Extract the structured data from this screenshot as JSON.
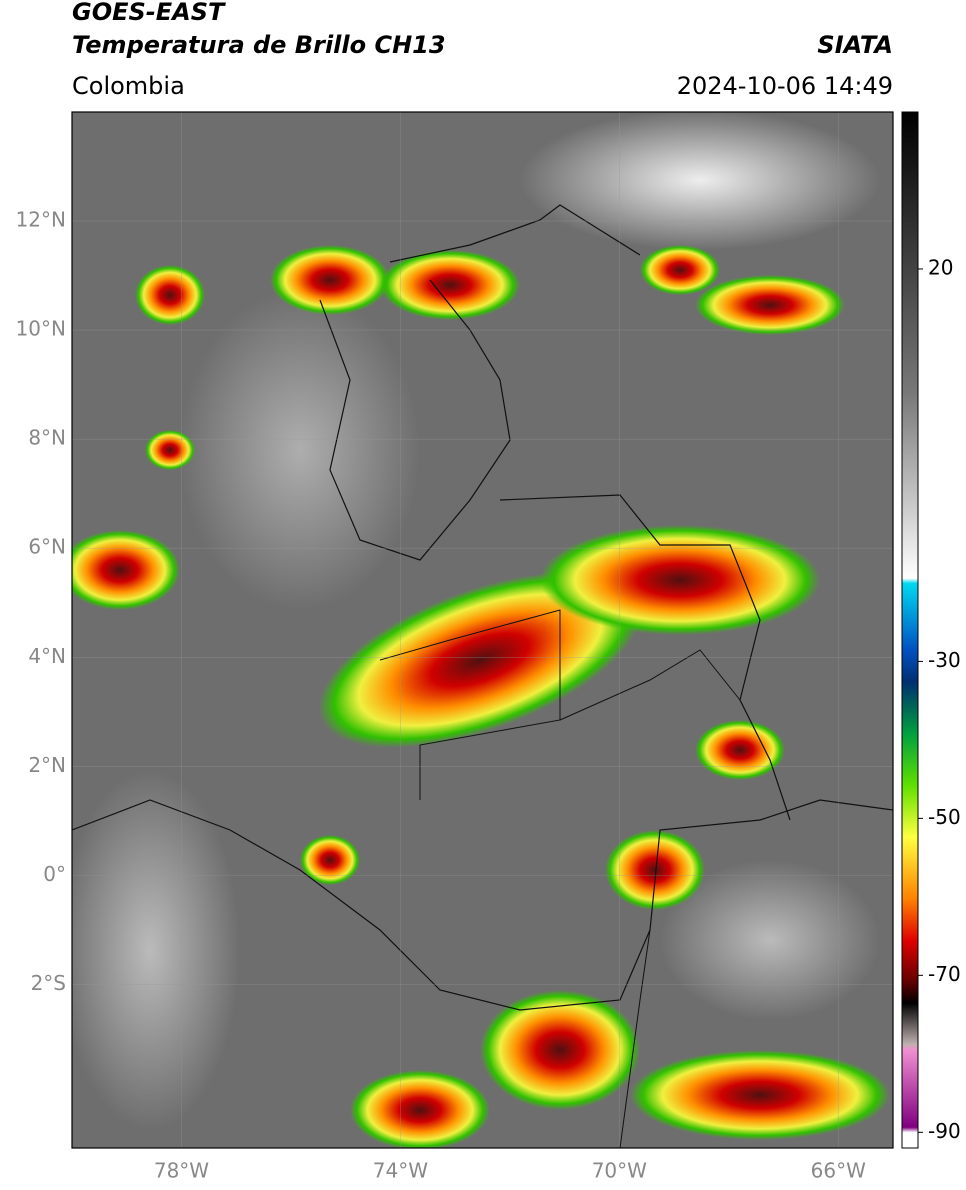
{
  "header": {
    "title": "GOES-EAST",
    "subtitle": "Temperatura de Brillo CH13",
    "region": "Colombia",
    "source": "SIATA",
    "datetime": "2024-10-06 14:49"
  },
  "map": {
    "lon_range": [
      -80,
      -65
    ],
    "lat_range": [
      -5,
      14
    ],
    "lat_ticks": [
      {
        "value": 12,
        "label": "12°N"
      },
      {
        "value": 10,
        "label": "10°N"
      },
      {
        "value": 8,
        "label": "8°N"
      },
      {
        "value": 6,
        "label": "6°N"
      },
      {
        "value": 4,
        "label": "4°N"
      },
      {
        "value": 2,
        "label": "2°N"
      },
      {
        "value": 0,
        "label": "0°"
      },
      {
        "value": -2,
        "label": "2°S"
      }
    ],
    "lon_ticks": [
      {
        "value": -78,
        "label": "78°W"
      },
      {
        "value": -74,
        "label": "74°W"
      },
      {
        "value": -70,
        "label": "70°W"
      },
      {
        "value": -66,
        "label": "66°W"
      }
    ]
  },
  "colorbar": {
    "range": [
      -92,
      40
    ],
    "ticks": [
      20,
      -30,
      -50,
      -70,
      -90
    ]
  }
}
